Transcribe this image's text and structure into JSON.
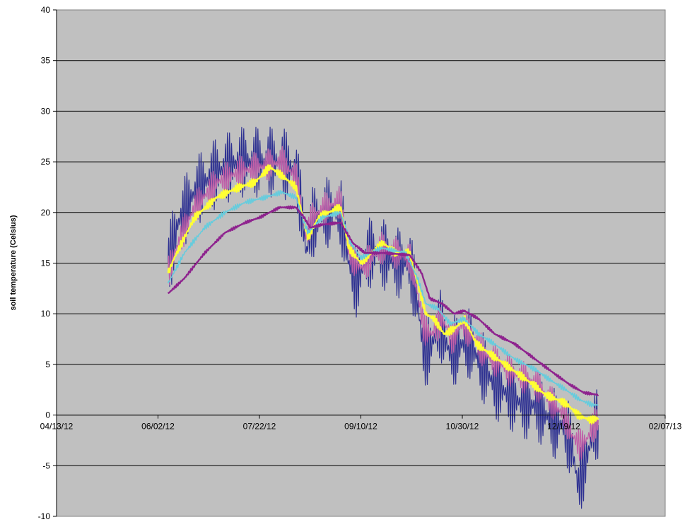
{
  "chart_data": {
    "type": "line",
    "title": "",
    "xlabel": "",
    "ylabel": "soil temperature (Celsius)",
    "xlim": [
      "2012-04-13",
      "2013-02-07"
    ],
    "ylim": [
      -10,
      40
    ],
    "x_ticks": [
      "04/13/12",
      "06/02/12",
      "07/22/12",
      "09/10/12",
      "10/30/12",
      "12/19/12",
      "02/07/13"
    ],
    "y_ticks": [
      -10,
      -5,
      0,
      5,
      10,
      15,
      20,
      25,
      30,
      35,
      40
    ],
    "grid": "horizontal",
    "legend": "none",
    "plot_background": "#c0c0c0",
    "series": [
      {
        "color": "#2e3192",
        "line_width": 1.2,
        "diurnal_amplitude": 3.5,
        "points": [
          [
            "2012-06-07",
            15
          ],
          [
            "2012-06-12",
            19
          ],
          [
            "2012-06-20",
            22
          ],
          [
            "2012-07-01",
            24
          ],
          [
            "2012-07-12",
            25
          ],
          [
            "2012-07-22",
            25
          ],
          [
            "2012-08-02",
            25
          ],
          [
            "2012-08-09",
            24
          ],
          [
            "2012-08-12",
            20
          ],
          [
            "2012-08-14",
            16
          ],
          [
            "2012-08-17",
            19
          ],
          [
            "2012-08-24",
            20
          ],
          [
            "2012-08-31",
            20
          ],
          [
            "2012-09-04",
            15
          ],
          [
            "2012-09-08",
            13
          ],
          [
            "2012-09-14",
            16
          ],
          [
            "2012-09-20",
            16
          ],
          [
            "2012-09-27",
            15
          ],
          [
            "2012-10-04",
            15
          ],
          [
            "2012-10-08",
            11
          ],
          [
            "2012-10-11",
            6
          ],
          [
            "2012-10-15",
            7
          ],
          [
            "2012-10-19",
            9
          ],
          [
            "2012-10-24",
            6
          ],
          [
            "2012-10-30",
            7
          ],
          [
            "2012-11-03",
            7
          ],
          [
            "2012-11-08",
            5
          ],
          [
            "2012-11-15",
            3
          ],
          [
            "2012-11-22",
            2
          ],
          [
            "2012-11-29",
            1
          ],
          [
            "2012-12-05",
            1
          ],
          [
            "2012-12-10",
            0
          ],
          [
            "2012-12-15",
            -1
          ],
          [
            "2012-12-19",
            -1
          ],
          [
            "2012-12-23",
            -3
          ],
          [
            "2012-12-26",
            -7
          ],
          [
            "2012-12-29",
            -5
          ],
          [
            "2013-01-01",
            -3
          ],
          [
            "2013-01-03",
            -1
          ],
          [
            "2013-01-05",
            -1
          ]
        ]
      },
      {
        "color": "#c060a8",
        "line_width": 1.2,
        "diurnal_amplitude": 1.6,
        "points": [
          [
            "2012-06-07",
            14
          ],
          [
            "2012-06-12",
            17
          ],
          [
            "2012-06-20",
            20.5
          ],
          [
            "2012-07-01",
            23
          ],
          [
            "2012-07-12",
            24
          ],
          [
            "2012-07-22",
            24.5
          ],
          [
            "2012-08-02",
            25
          ],
          [
            "2012-08-09",
            23.5
          ],
          [
            "2012-08-12",
            20
          ],
          [
            "2012-08-14",
            17.5
          ],
          [
            "2012-08-17",
            19.5
          ],
          [
            "2012-08-24",
            20.5
          ],
          [
            "2012-08-31",
            21
          ],
          [
            "2012-09-04",
            16
          ],
          [
            "2012-09-10",
            14.5
          ],
          [
            "2012-09-20",
            16.5
          ],
          [
            "2012-10-04",
            15.5
          ],
          [
            "2012-10-08",
            12
          ],
          [
            "2012-10-11",
            8.5
          ],
          [
            "2012-10-15",
            8
          ],
          [
            "2012-10-20",
            9.5
          ],
          [
            "2012-10-25",
            7.5
          ],
          [
            "2012-10-30",
            9
          ],
          [
            "2012-11-05",
            7.5
          ],
          [
            "2012-11-10",
            6
          ],
          [
            "2012-11-18",
            5
          ],
          [
            "2012-11-25",
            4
          ],
          [
            "2012-12-02",
            3.5
          ],
          [
            "2012-12-08",
            2.5
          ],
          [
            "2012-12-14",
            1
          ],
          [
            "2012-12-19",
            0
          ],
          [
            "2012-12-23",
            -2
          ],
          [
            "2012-12-27",
            -3
          ],
          [
            "2012-12-30",
            -2.5
          ],
          [
            "2013-01-03",
            -1
          ],
          [
            "2013-01-05",
            -0.5
          ]
        ]
      },
      {
        "color": "#ffff33",
        "line_width": 2.2,
        "diurnal_amplitude": 0.4,
        "points": [
          [
            "2012-06-07",
            14
          ],
          [
            "2012-06-10",
            15.5
          ],
          [
            "2012-06-20",
            19.5
          ],
          [
            "2012-07-01",
            21.5
          ],
          [
            "2012-07-12",
            22.5
          ],
          [
            "2012-07-20",
            23
          ],
          [
            "2012-07-27",
            24.5
          ],
          [
            "2012-08-03",
            23.5
          ],
          [
            "2012-08-09",
            22.5
          ],
          [
            "2012-08-13",
            19
          ],
          [
            "2012-08-15",
            17.5
          ],
          [
            "2012-08-20",
            19.5
          ],
          [
            "2012-08-25",
            20
          ],
          [
            "2012-08-31",
            20.5
          ],
          [
            "2012-09-04",
            16.5
          ],
          [
            "2012-09-10",
            15
          ],
          [
            "2012-09-15",
            16
          ],
          [
            "2012-09-21",
            17
          ],
          [
            "2012-09-27",
            16
          ],
          [
            "2012-10-04",
            16
          ],
          [
            "2012-10-08",
            13
          ],
          [
            "2012-10-12",
            10
          ],
          [
            "2012-10-16",
            9.5
          ],
          [
            "2012-10-21",
            8
          ],
          [
            "2012-10-26",
            8.5
          ],
          [
            "2012-10-31",
            9.5
          ],
          [
            "2012-11-06",
            7
          ],
          [
            "2012-11-13",
            6
          ],
          [
            "2012-11-20",
            5
          ],
          [
            "2012-11-27",
            4
          ],
          [
            "2012-12-04",
            3
          ],
          [
            "2012-12-10",
            2
          ],
          [
            "2012-12-16",
            1.5
          ],
          [
            "2012-12-21",
            1
          ],
          [
            "2012-12-26",
            0
          ],
          [
            "2013-01-01",
            -0.5
          ],
          [
            "2013-01-05",
            -0.3
          ]
        ]
      },
      {
        "color": "#66ccdd",
        "line_width": 1.6,
        "diurnal_amplitude": 0.25,
        "points": [
          [
            "2012-06-07",
            13
          ],
          [
            "2012-06-15",
            16
          ],
          [
            "2012-06-25",
            18.5
          ],
          [
            "2012-07-05",
            20
          ],
          [
            "2012-07-15",
            21
          ],
          [
            "2012-07-25",
            21.5
          ],
          [
            "2012-08-02",
            22
          ],
          [
            "2012-08-09",
            21.5
          ],
          [
            "2012-08-13",
            19
          ],
          [
            "2012-08-15",
            18
          ],
          [
            "2012-08-22",
            19.5
          ],
          [
            "2012-08-31",
            20
          ],
          [
            "2012-09-05",
            17
          ],
          [
            "2012-09-10",
            15.5
          ],
          [
            "2012-09-20",
            16.5
          ],
          [
            "2012-10-02",
            16
          ],
          [
            "2012-10-08",
            13.5
          ],
          [
            "2012-10-12",
            11
          ],
          [
            "2012-10-18",
            10.5
          ],
          [
            "2012-10-24",
            9
          ],
          [
            "2012-10-31",
            9.5
          ],
          [
            "2012-11-07",
            8
          ],
          [
            "2012-11-15",
            7
          ],
          [
            "2012-11-25",
            5.5
          ],
          [
            "2012-12-05",
            4.5
          ],
          [
            "2012-12-12",
            3.5
          ],
          [
            "2012-12-20",
            2.5
          ],
          [
            "2012-12-27",
            1.5
          ],
          [
            "2013-01-02",
            1
          ],
          [
            "2013-01-05",
            1
          ]
        ]
      },
      {
        "color": "#8e238e",
        "line_width": 2.4,
        "diurnal_amplitude": 0.12,
        "points": [
          [
            "2012-06-07",
            12
          ],
          [
            "2012-06-15",
            13.5
          ],
          [
            "2012-06-25",
            16
          ],
          [
            "2012-07-05",
            18
          ],
          [
            "2012-07-15",
            19
          ],
          [
            "2012-07-22",
            19.5
          ],
          [
            "2012-08-01",
            20.5
          ],
          [
            "2012-08-09",
            20.5
          ],
          [
            "2012-08-13",
            19.5
          ],
          [
            "2012-08-16",
            18.5
          ],
          [
            "2012-08-22",
            18.8
          ],
          [
            "2012-08-31",
            19
          ],
          [
            "2012-09-06",
            17
          ],
          [
            "2012-09-12",
            16
          ],
          [
            "2012-09-22",
            16
          ],
          [
            "2012-10-04",
            15.8
          ],
          [
            "2012-10-10",
            14
          ],
          [
            "2012-10-14",
            11.5
          ],
          [
            "2012-10-20",
            11
          ],
          [
            "2012-10-26",
            10
          ],
          [
            "2012-10-31",
            10.3
          ],
          [
            "2012-11-07",
            9.5
          ],
          [
            "2012-11-15",
            8
          ],
          [
            "2012-11-25",
            7
          ],
          [
            "2012-12-05",
            5.5
          ],
          [
            "2012-12-15",
            4
          ],
          [
            "2012-12-22",
            3
          ],
          [
            "2012-12-29",
            2.2
          ],
          [
            "2013-01-05",
            2
          ]
        ]
      }
    ]
  }
}
